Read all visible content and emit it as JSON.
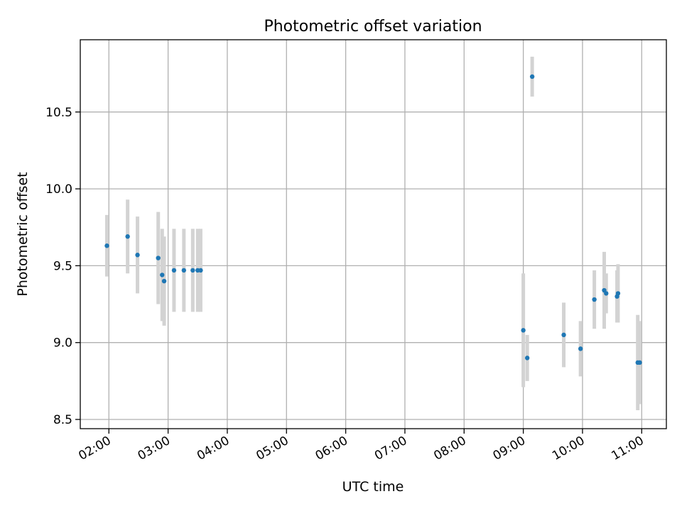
{
  "chart_data": {
    "type": "scatter",
    "title": "Photometric offset variation",
    "xlabel": "UTC time",
    "ylabel": "Photometric offset",
    "xlim": [
      "01:31",
      "11:25"
    ],
    "ylim": [
      8.44,
      10.97
    ],
    "xticks": [
      "02:00",
      "03:00",
      "04:00",
      "05:00",
      "06:00",
      "07:00",
      "08:00",
      "09:00",
      "10:00",
      "11:00"
    ],
    "yticks": [
      8.5,
      9.0,
      9.5,
      10.0,
      10.5
    ],
    "ytick_labels": [
      "8.5",
      "9.0",
      "9.5",
      "10.0",
      "10.5"
    ],
    "grid": true,
    "point_color": "#1f77b4",
    "errorbar_color": "#d3d3d3",
    "series": [
      {
        "points": [
          {
            "x": "01:58",
            "y": 9.63,
            "err": 0.2
          },
          {
            "x": "02:19",
            "y": 9.69,
            "err": 0.24
          },
          {
            "x": "02:29",
            "y": 9.57,
            "err": 0.25
          },
          {
            "x": "02:50",
            "y": 9.55,
            "err": 0.3
          },
          {
            "x": "02:54",
            "y": 9.44,
            "err": 0.3
          },
          {
            "x": "02:56",
            "y": 9.4,
            "err": 0.29
          },
          {
            "x": "03:06",
            "y": 9.47,
            "err": 0.27
          },
          {
            "x": "03:16",
            "y": 9.47,
            "err": 0.27
          },
          {
            "x": "03:25",
            "y": 9.47,
            "err": 0.27
          },
          {
            "x": "03:30",
            "y": 9.47,
            "err": 0.27
          },
          {
            "x": "03:33",
            "y": 9.47,
            "err": 0.27
          },
          {
            "x": "09:00",
            "y": 9.08,
            "err": 0.37
          },
          {
            "x": "09:04",
            "y": 8.9,
            "err": 0.15
          },
          {
            "x": "09:09",
            "y": 10.73,
            "err": 0.13
          },
          {
            "x": "09:41",
            "y": 9.05,
            "err": 0.21
          },
          {
            "x": "09:58",
            "y": 8.96,
            "err": 0.18
          },
          {
            "x": "10:12",
            "y": 9.28,
            "err": 0.19
          },
          {
            "x": "10:22",
            "y": 9.34,
            "err": 0.25
          },
          {
            "x": "10:24",
            "y": 9.32,
            "err": 0.13
          },
          {
            "x": "10:35",
            "y": 9.3,
            "err": 0.17
          },
          {
            "x": "10:36",
            "y": 9.32,
            "err": 0.19
          },
          {
            "x": "10:56",
            "y": 8.87,
            "err": 0.31
          },
          {
            "x": "10:58",
            "y": 8.87,
            "err": 0.27
          }
        ]
      }
    ]
  }
}
